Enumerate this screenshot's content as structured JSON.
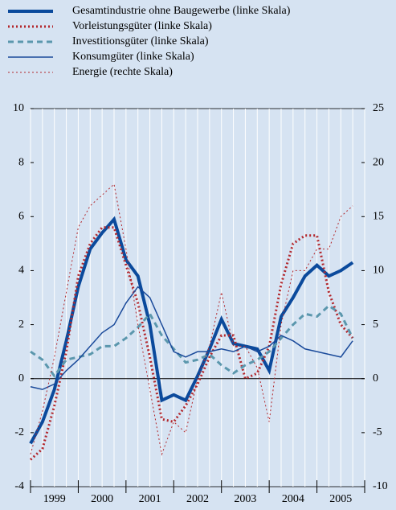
{
  "chart_data": {
    "type": "line",
    "x": [
      1999,
      1999.25,
      1999.5,
      1999.75,
      2000,
      2000.25,
      2000.5,
      2000.75,
      2001,
      2001.25,
      2001.5,
      2001.75,
      2002,
      2002.25,
      2002.5,
      2002.75,
      2003,
      2003.25,
      2003.5,
      2003.75,
      2004,
      2004.25,
      2004.5,
      2004.75,
      2005,
      2005.25,
      2005.5,
      2005.75
    ],
    "xlim": [
      1999,
      2006
    ],
    "xticks": [
      {
        "value": 1999.5,
        "label": "1999"
      },
      {
        "value": 2000.5,
        "label": "2000"
      },
      {
        "value": 2001.5,
        "label": "2001"
      },
      {
        "value": 2002.5,
        "label": "2002"
      },
      {
        "value": 2003.5,
        "label": "2003"
      },
      {
        "value": 2004.5,
        "label": "2004"
      },
      {
        "value": 2005.5,
        "label": "2005"
      }
    ],
    "ylim": [
      -4,
      10
    ],
    "yticks": [
      -4,
      -2,
      0,
      2,
      4,
      6,
      8,
      10
    ],
    "y2lim": [
      -10,
      25
    ],
    "y2ticks": [
      -10,
      -5,
      0,
      5,
      10,
      15,
      20,
      25
    ],
    "series": [
      {
        "name": "Gesamtindustrie ohne Baugewerbe (linke Skala)",
        "color": "#0b4a9c",
        "dash": "solid",
        "width": 4,
        "values": [
          -2.4,
          -1.6,
          -0.4,
          1.4,
          3.4,
          4.8,
          5.4,
          5.9,
          4.4,
          3.8,
          2.0,
          -0.8,
          -0.6,
          -0.8,
          0.1,
          1.1,
          2.2,
          1.3,
          1.2,
          1.1,
          0.3,
          2.3,
          3.0,
          3.8,
          4.2,
          3.8,
          4.0,
          4.3
        ]
      },
      {
        "name": "Vorleistungsgüter (linke Skala)",
        "color": "#b3282d",
        "dash": "dotted",
        "width": 3,
        "values": [
          -3.0,
          -2.6,
          -1.0,
          1.0,
          3.8,
          5.0,
          5.6,
          5.6,
          4.2,
          2.8,
          0.8,
          -1.5,
          -1.6,
          -1.0,
          -0.2,
          0.8,
          1.6,
          1.6,
          0.0,
          0.2,
          1.2,
          3.5,
          5.0,
          5.3,
          5.3,
          3.2,
          2.0,
          1.5
        ]
      },
      {
        "name": "Investitionsgüter (linke Skala)",
        "color": "#5b97ad",
        "dash": "dashed",
        "width": 3,
        "values": [
          1.0,
          0.7,
          0.1,
          0.7,
          0.8,
          0.9,
          1.2,
          1.2,
          1.5,
          1.9,
          2.4,
          1.6,
          1.1,
          0.6,
          0.7,
          0.9,
          0.5,
          0.2,
          0.5,
          0.7,
          1.0,
          1.5,
          2.0,
          2.4,
          2.3,
          2.7,
          2.4,
          1.5
        ]
      },
      {
        "name": "Konsumgüter (linke Skala)",
        "color": "#1a4a9a",
        "dash": "solid",
        "width": 1.5,
        "values": [
          -0.3,
          -0.4,
          -0.2,
          0.3,
          0.7,
          1.2,
          1.7,
          2.0,
          2.8,
          3.4,
          3.0,
          2.0,
          1.0,
          0.8,
          1.0,
          1.0,
          1.1,
          1.0,
          1.2,
          1.0,
          1.2,
          1.6,
          1.4,
          1.1,
          1.0,
          0.9,
          0.8,
          1.4
        ]
      },
      {
        "name": "Energie (rechte Skala)",
        "color": "#b3282d",
        "dash": "dotted",
        "width": 1,
        "axis": "y2",
        "values": [
          -7,
          -3,
          2,
          8,
          14,
          16,
          17,
          18,
          12,
          5,
          -1,
          -7,
          -4,
          -5,
          0,
          3,
          8,
          3,
          3,
          1,
          -4,
          5,
          10,
          10,
          12,
          12,
          15,
          16
        ]
      }
    ]
  }
}
